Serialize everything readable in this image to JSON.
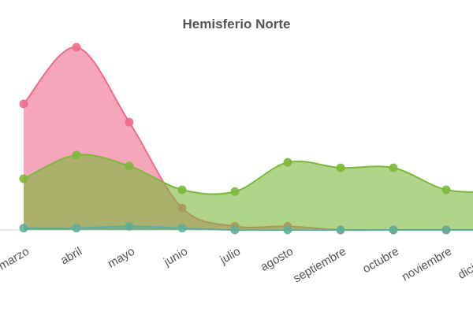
{
  "chart_data": {
    "type": "area",
    "title": "Hemisferio Norte",
    "categories": [
      "marzo",
      "abril",
      "mayo",
      "junio",
      "julio",
      "agosto",
      "septiembre",
      "octubre",
      "noviembre",
      "diciembre"
    ],
    "series": [
      {
        "color": "#f06a8c",
        "values": [
          69,
          100,
          59,
          12,
          2,
          2,
          0,
          0,
          0,
          0
        ]
      },
      {
        "color": "#7cb83a",
        "values": [
          28,
          41,
          35,
          22,
          21,
          37,
          34,
          34,
          22,
          21
        ]
      },
      {
        "color": "#5fae9a",
        "values": [
          1,
          1,
          2,
          1,
          0,
          0,
          0,
          0,
          0,
          0
        ]
      }
    ],
    "ylim": [
      0,
      100
    ]
  }
}
